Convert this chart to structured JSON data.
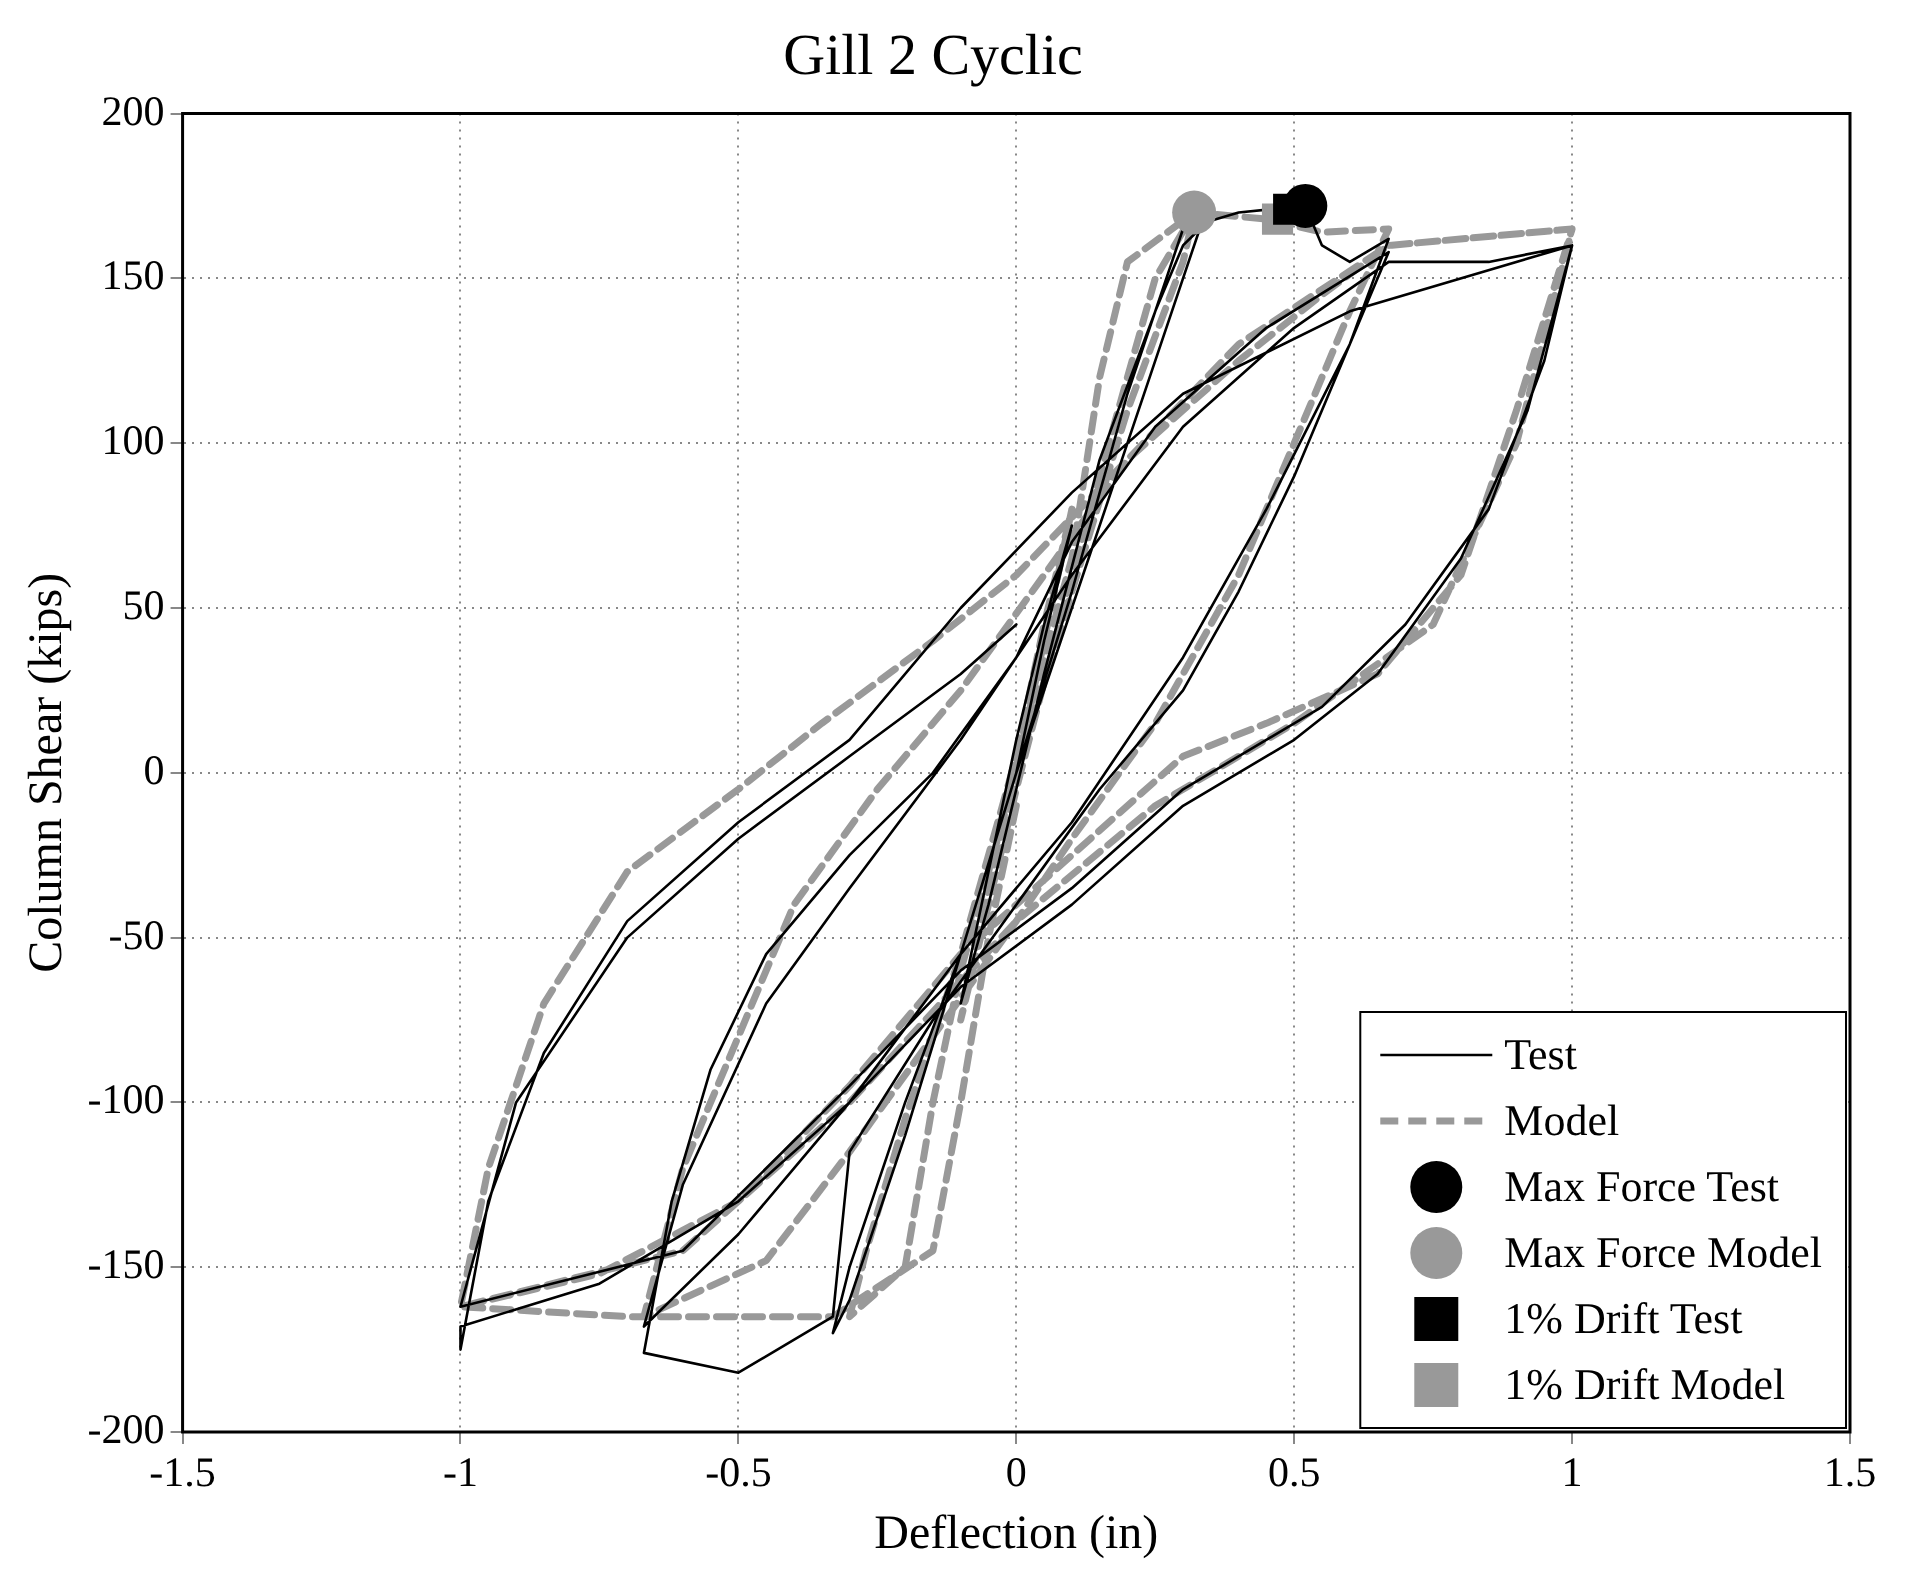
{
  "chart_data": {
    "type": "line",
    "title": "Gill 2 Cyclic",
    "xlabel": "Deflection (in)",
    "ylabel": "Column Shear (kips)",
    "xlim": [
      -1.5,
      1.5
    ],
    "xticks": [
      -1.5,
      -1,
      -0.5,
      0,
      0.5,
      1,
      1.5
    ],
    "ylim": [
      -200,
      200
    ],
    "yticks": [
      -200,
      -150,
      -100,
      -50,
      0,
      50,
      100,
      150,
      200
    ],
    "grid": true,
    "legend": "bottom right",
    "series": [
      {
        "name": "Test",
        "type": "line",
        "color": "#000000",
        "line_style": "solid",
        "marker": "none",
        "x": [
          0,
          0.05,
          0.1,
          0.05,
          0,
          -0.05,
          -0.1,
          -0.05,
          0,
          0.05,
          0.15,
          0.25,
          0.3,
          0.33,
          0.3,
          0.2,
          0.1,
          0,
          -0.1,
          -0.2,
          -0.3,
          -0.33,
          -0.3,
          -0.2,
          -0.1,
          0,
          0.1,
          0.2,
          0.3,
          0.4,
          0.52,
          0.55,
          0.6,
          0.67,
          0.6,
          0.5,
          0.4,
          0.3,
          0.15,
          0,
          -0.15,
          -0.3,
          -0.33,
          -0.5,
          -0.67,
          -0.62,
          -0.55,
          -0.45,
          -0.3,
          -0.15,
          0,
          0.1,
          0.25,
          0.45,
          0.67,
          0.6,
          0.45,
          0.3,
          0.1,
          -0.1,
          -0.3,
          -0.5,
          -0.67,
          -0.6,
          -0.45,
          -0.3,
          -0.1,
          0.1,
          0.3,
          0.5,
          0.67,
          0.85,
          1,
          0.92,
          0.8,
          0.65,
          0.5,
          0.3,
          0.1,
          -0.1,
          -0.3,
          -0.5,
          -0.75,
          -1,
          -1,
          -0.95,
          -0.85,
          -0.7,
          -0.5,
          -0.3,
          -0.1,
          0.1,
          0.3,
          0.6,
          1,
          0.95,
          0.85,
          0.7,
          0.55,
          0.3,
          0.1,
          -0.1,
          -0.3,
          -0.6,
          -1,
          -0.9,
          -0.7,
          -0.5,
          -0.3,
          -0.1,
          0
        ],
        "values": [
          0,
          40,
          75,
          45,
          10,
          -30,
          -70,
          -40,
          -5,
          30,
          95,
          140,
          160,
          165,
          150,
          100,
          50,
          0,
          -55,
          -110,
          -160,
          -170,
          -150,
          -100,
          -55,
          0,
          55,
          115,
          165,
          170,
          172,
          160,
          155,
          162,
          130,
          90,
          55,
          25,
          -5,
          -40,
          -75,
          -115,
          -165,
          -182,
          -176,
          -130,
          -90,
          -55,
          -25,
          0,
          35,
          70,
          105,
          135,
          158,
          130,
          80,
          35,
          -15,
          -55,
          -100,
          -140,
          -168,
          -125,
          -70,
          -35,
          10,
          60,
          105,
          135,
          155,
          155,
          160,
          110,
          65,
          30,
          10,
          -10,
          -40,
          -65,
          -100,
          -130,
          -155,
          -168,
          -175,
          -130,
          -85,
          -45,
          -15,
          10,
          50,
          85,
          115,
          140,
          160,
          125,
          80,
          45,
          20,
          -5,
          -35,
          -60,
          -95,
          -145,
          -162,
          -100,
          -50,
          -20,
          5,
          30,
          45
        ]
      },
      {
        "name": "Model",
        "type": "line",
        "color": "#999999",
        "line_style": "dashed",
        "marker": "none",
        "x": [
          0,
          0.05,
          0.1,
          0.05,
          0,
          -0.05,
          -0.1,
          -0.05,
          0,
          0.1,
          0.2,
          0.25,
          0.32,
          0.3,
          0.2,
          0.1,
          0,
          -0.1,
          -0.15,
          -0.2,
          -0.3,
          -0.27,
          -0.2,
          -0.1,
          0,
          0.1,
          0.15,
          0.2,
          0.32,
          0.45,
          0.55,
          0.67,
          0.6,
          0.5,
          0.4,
          0.25,
          0.1,
          0,
          -0.15,
          -0.3,
          -0.45,
          -0.67,
          -0.6,
          -0.5,
          -0.4,
          -0.25,
          -0.1,
          0.05,
          0.2,
          0.4,
          0.55,
          0.67,
          1,
          0.9,
          0.8,
          0.65,
          0.45,
          0.3,
          0.1,
          -0.1,
          -0.3,
          -0.5,
          -0.75,
          -1,
          -0.95,
          -0.85,
          -0.7,
          -0.5,
          -0.35,
          -0.15,
          0,
          0.2,
          0.4,
          0.67,
          1,
          0.9,
          0.75,
          0.5,
          0.25,
          0,
          -0.3,
          -0.6,
          -1,
          -0.7,
          -0.33,
          -0.15,
          -0.1,
          -0.05,
          0
        ],
        "values": [
          0,
          40,
          80,
          45,
          5,
          -35,
          -75,
          -40,
          -5,
          60,
          120,
          150,
          170,
          155,
          110,
          55,
          0,
          -60,
          -100,
          -150,
          -165,
          -145,
          -105,
          -55,
          5,
          65,
          120,
          155,
          170,
          168,
          164,
          165,
          140,
          100,
          60,
          15,
          -20,
          -45,
          -80,
          -115,
          -148,
          -165,
          -120,
          -80,
          -40,
          -5,
          25,
          60,
          95,
          125,
          145,
          160,
          165,
          110,
          60,
          30,
          15,
          5,
          -25,
          -55,
          -95,
          -130,
          -152,
          -162,
          -120,
          -70,
          -30,
          -5,
          15,
          40,
          60,
          95,
          130,
          160,
          165,
          100,
          45,
          15,
          -10,
          -45,
          -100,
          -145,
          -162,
          -165,
          -165,
          -145,
          -100,
          -50,
          -10
        ]
      },
      {
        "name": "Max Force Test",
        "type": "scatter",
        "color": "#000000",
        "marker": "circle",
        "x": [
          0.52
        ],
        "values": [
          172
        ]
      },
      {
        "name": "Max Force Model",
        "type": "scatter",
        "color": "#999999",
        "marker": "circle",
        "x": [
          0.32
        ],
        "values": [
          170
        ]
      },
      {
        "name": "1% Drift Test",
        "type": "scatter",
        "color": "#000000",
        "marker": "square",
        "x": [
          0.49
        ],
        "values": [
          171
        ]
      },
      {
        "name": "1% Drift Model",
        "type": "scatter",
        "color": "#999999",
        "marker": "square",
        "x": [
          0.47
        ],
        "values": [
          168
        ]
      }
    ]
  }
}
